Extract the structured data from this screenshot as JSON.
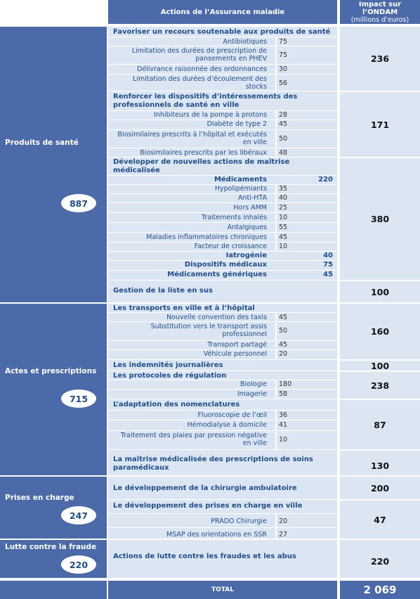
{
  "header": {
    "actions": "Actions de l’Assurance maladie",
    "impact_line1": "Impact sur",
    "impact_line2": "l’ONDAM",
    "impact_line3": "(millions d’euros)"
  },
  "categories": [
    {
      "label": "Produits de santé",
      "total": "887"
    },
    {
      "label": "Actes et prescriptions",
      "total": "715"
    },
    {
      "label": "Prises en charge",
      "total": "247"
    },
    {
      "label": "Lutte contre la fraude",
      "total": "220"
    }
  ],
  "titles": [
    "Favoriser un recours soutenable aux produits de santé",
    "Renforcer les dispositifs d’intéressements des professionnels de santé en ville",
    "Développer de nouvelles actions de maîtrise médicalisée",
    "Gestion de la liste en sus",
    "Les transports en ville et à l’hôpital",
    "Les indemnités journalières",
    "Les protocoles de régulation",
    "L’adaptation des nomenclatures",
    "La maîtrise médicalisée des prescriptions de soins paramédicaux",
    "Le développement de la chirurgie ambulatoire",
    "Le développement des prises en charge en ville",
    "Actions de lutte contre les fraudes et les abus"
  ],
  "items": [
    {
      "label": "Antibiotiques",
      "value": "75"
    },
    {
      "label": "Limitation des durées de prescription de pansements en PHEV",
      "value": "75"
    },
    {
      "label": "Délivrance raisonnée des ordonnances",
      "value": "30"
    },
    {
      "label": "Limitation des durées d’écoulement des stocks",
      "value": "56"
    },
    {
      "label": "Inhibiteurs de la pompe à protons",
      "value": "28"
    },
    {
      "label": "Diabète de type 2",
      "value": "45"
    },
    {
      "label": "Biosimilaires prescrits à l’hôpital et exécutés en ville",
      "value": "50"
    },
    {
      "label": "Biosimilaires prescrits par les libéraux",
      "value": "48"
    },
    {
      "label": "Hypolipémiants",
      "value": "35"
    },
    {
      "label": "Anti-HTA",
      "value": "40"
    },
    {
      "label": "Hors AMM",
      "value": "25"
    },
    {
      "label": "Traitements inhalés",
      "value": "10"
    },
    {
      "label": "Antalgiques",
      "value": "55"
    },
    {
      "label": "Maladies inflammatoires chroniques",
      "value": "45"
    },
    {
      "label": "Facteur de croissance",
      "value": "10"
    },
    {
      "label": "Nouvelle convention des taxis",
      "value": "45"
    },
    {
      "label": "Substitution vers le transport assis professionnel",
      "value": "50"
    },
    {
      "label": "Transport partagé",
      "value": "45"
    },
    {
      "label": "Véhicule personnel",
      "value": "20"
    },
    {
      "label": "Biologie",
      "value": "180"
    },
    {
      "label": "Imagerie",
      "value": "58"
    },
    {
      "label": "Fluoroscopie de l’œil",
      "value": "36"
    },
    {
      "label": "Hémodialyse à domicile",
      "value": "41"
    },
    {
      "label": "Traitement des plaies par pression négative en ville",
      "value": "10"
    },
    {
      "label": "PRADO Chirurgie",
      "value": "20"
    },
    {
      "label": "MSAP des orientations en SSR",
      "value": "27"
    }
  ],
  "bold_items": [
    {
      "label": "Médicaments",
      "value": "220"
    },
    {
      "label": "Iatrogénie",
      "value": "40"
    },
    {
      "label": "Dispositifs médicaux",
      "value": "75"
    },
    {
      "label": "Médicaments génériques",
      "value": "45"
    }
  ],
  "impacts": [
    "236",
    "171",
    "380",
    "100",
    "160",
    "100",
    "238",
    "87",
    "130",
    "200",
    "47",
    "220"
  ],
  "footer": {
    "total_label": "TOTAL",
    "total_value": "2 069"
  }
}
